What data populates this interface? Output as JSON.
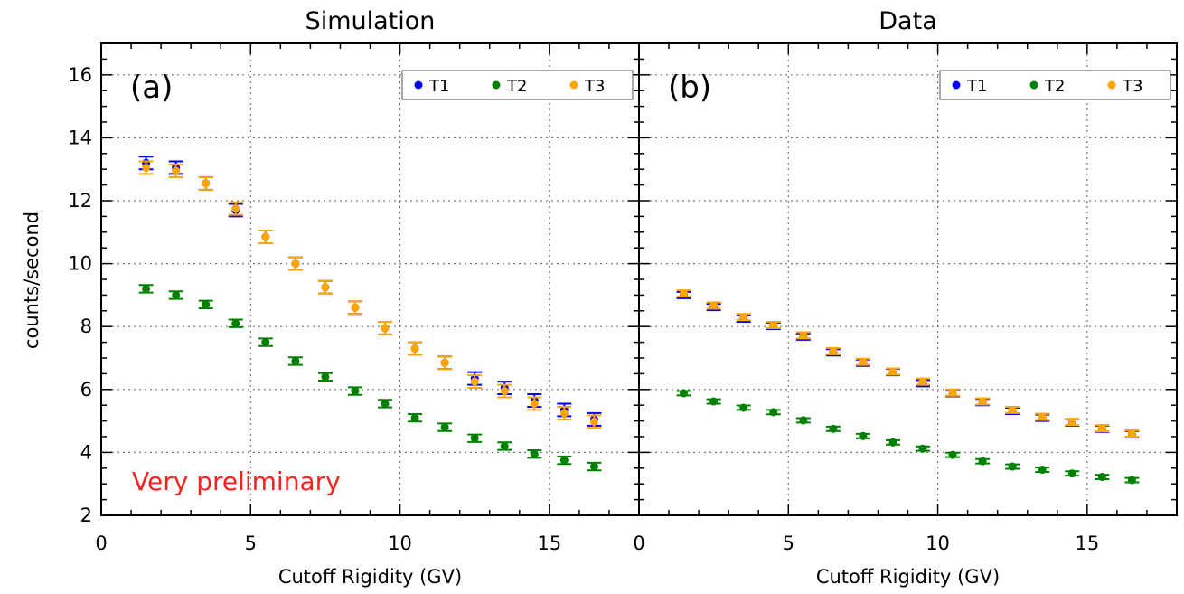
{
  "chart_data": [
    {
      "type": "scatter",
      "title": "Simulation",
      "panel_label": "(a)",
      "annotation": "Very preliminary",
      "annotation_color": "#ff2020",
      "xlabel": "Cutoff Rigidity (GV)",
      "ylabel": "counts/second",
      "xlim": [
        0,
        18
      ],
      "ylim": [
        2,
        17
      ],
      "xticks": [
        0,
        5,
        10,
        15
      ],
      "yticks": [
        2,
        4,
        6,
        8,
        10,
        12,
        14,
        16
      ],
      "grid": true,
      "legend_position": "top-right",
      "x": [
        1.5,
        2.5,
        3.5,
        4.5,
        5.5,
        6.5,
        7.5,
        8.5,
        9.5,
        10.5,
        11.5,
        12.5,
        13.5,
        14.5,
        15.5,
        16.5
      ],
      "series": [
        {
          "name": "T1",
          "color": "#0000ff",
          "values": [
            13.2,
            13.05,
            12.55,
            11.7,
            10.85,
            10.0,
            9.25,
            8.6,
            7.95,
            7.3,
            6.85,
            6.35,
            6.05,
            5.65,
            5.35,
            5.05
          ],
          "error": 0.2
        },
        {
          "name": "T2",
          "color": "#008000",
          "values": [
            9.2,
            9.0,
            8.7,
            8.1,
            7.5,
            6.9,
            6.4,
            5.95,
            5.55,
            5.1,
            4.8,
            4.45,
            4.2,
            3.95,
            3.75,
            3.55
          ],
          "error": 0.12
        },
        {
          "name": "T3",
          "color": "#ffa500",
          "values": [
            13.05,
            12.95,
            12.55,
            11.75,
            10.85,
            10.0,
            9.25,
            8.6,
            7.95,
            7.3,
            6.85,
            6.25,
            5.95,
            5.55,
            5.25,
            4.98
          ],
          "error": 0.2
        }
      ]
    },
    {
      "type": "scatter",
      "title": "Data",
      "panel_label": "(b)",
      "xlabel": "Cutoff Rigidity (GV)",
      "ylabel": "",
      "xlim": [
        0,
        18
      ],
      "ylim": [
        2,
        17
      ],
      "xticks": [
        0,
        5,
        10,
        15
      ],
      "yticks": [
        2,
        4,
        6,
        8,
        10,
        12,
        14,
        16
      ],
      "grid": true,
      "legend_position": "top-right",
      "x": [
        1.5,
        2.5,
        3.5,
        4.5,
        5.5,
        6.5,
        7.5,
        8.5,
        9.5,
        10.5,
        11.5,
        12.5,
        13.5,
        14.5,
        15.5,
        16.5
      ],
      "series": [
        {
          "name": "T1",
          "color": "#0000ff",
          "values": [
            9.0,
            8.62,
            8.25,
            8.02,
            7.68,
            7.18,
            6.85,
            6.55,
            6.2,
            5.88,
            5.6,
            5.32,
            5.1,
            4.95,
            4.75,
            4.58
          ],
          "error": 0.1
        },
        {
          "name": "T2",
          "color": "#008000",
          "values": [
            5.88,
            5.62,
            5.42,
            5.28,
            5.02,
            4.75,
            4.52,
            4.32,
            4.12,
            3.92,
            3.72,
            3.55,
            3.45,
            3.33,
            3.22,
            3.12
          ],
          "error": 0.07
        },
        {
          "name": "T3",
          "color": "#ffa500",
          "values": [
            9.05,
            8.67,
            8.3,
            8.05,
            7.72,
            7.22,
            6.88,
            6.57,
            6.25,
            5.9,
            5.62,
            5.35,
            5.13,
            4.97,
            4.77,
            4.6
          ],
          "error": 0.1
        }
      ]
    }
  ]
}
